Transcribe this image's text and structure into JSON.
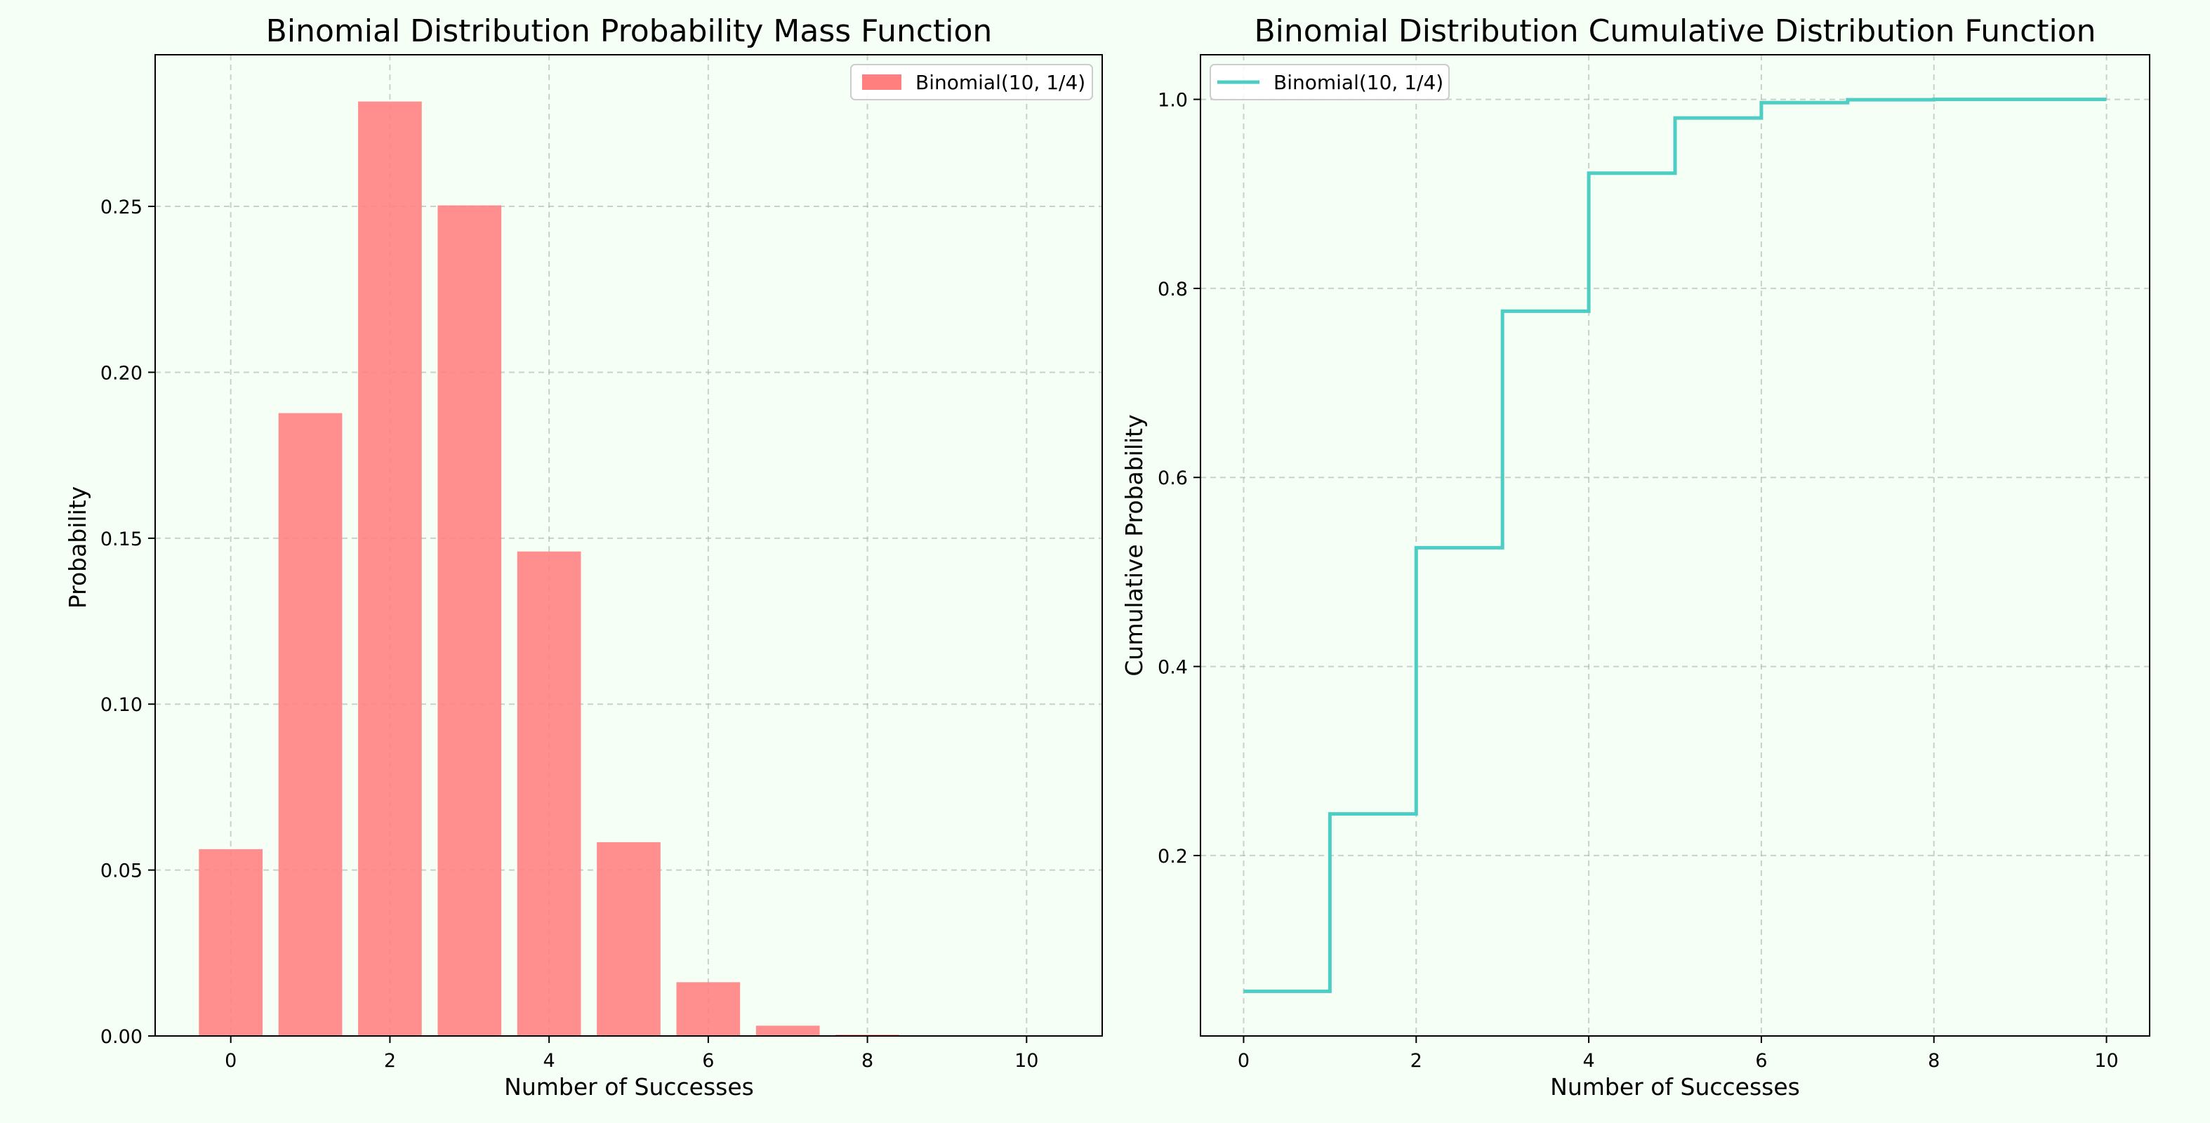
{
  "figure": {
    "background": "#f5fff5"
  },
  "chart_data": [
    {
      "type": "bar",
      "title": "Binomial Distribution Probability Mass Function",
      "xlabel": "Number of Successes",
      "ylabel": "Probability",
      "x": [
        0,
        1,
        2,
        3,
        4,
        5,
        6,
        7,
        8,
        9,
        10
      ],
      "values": [
        0.0563,
        0.1877,
        0.2816,
        0.2503,
        0.146,
        0.0584,
        0.0162,
        0.0031,
        0.0004,
        0.0,
        0.0
      ],
      "xlim": [
        -0.95,
        10.95
      ],
      "ylim": [
        0,
        0.2957
      ],
      "xticks": [
        0,
        2,
        4,
        6,
        8,
        10
      ],
      "yticks": [
        0.0,
        0.05,
        0.1,
        0.15,
        0.2,
        0.25
      ],
      "xtick_labels": [
        "0",
        "2",
        "4",
        "6",
        "8",
        "10"
      ],
      "ytick_labels": [
        "0.00",
        "0.05",
        "0.10",
        "0.15",
        "0.20",
        "0.25"
      ],
      "grid": true,
      "legend": {
        "placement": "top-right",
        "entries": [
          {
            "label": "Binomial(10, 1/4)",
            "color": "#ff7f7f"
          }
        ]
      },
      "color": "#ff7f7f"
    },
    {
      "type": "line",
      "style": "step",
      "title": "Binomial Distribution Cumulative Distribution Function",
      "xlabel": "Number of Successes",
      "ylabel": "Cumulative Probability",
      "x": [
        0,
        1,
        2,
        3,
        4,
        5,
        6,
        7,
        8,
        9,
        10
      ],
      "values": [
        0.0563,
        0.244,
        0.5256,
        0.7759,
        0.9219,
        0.9803,
        0.9965,
        0.9996,
        1.0,
        1.0,
        1.0
      ],
      "xlim": [
        -0.5,
        10.5
      ],
      "ylim": [
        0.0091,
        1.0472
      ],
      "xticks": [
        0,
        2,
        4,
        6,
        8,
        10
      ],
      "yticks": [
        0.2,
        0.4,
        0.6,
        0.8,
        1.0
      ],
      "xtick_labels": [
        "0",
        "2",
        "4",
        "6",
        "8",
        "10"
      ],
      "ytick_labels": [
        "0.2",
        "0.4",
        "0.6",
        "0.8",
        "1.0"
      ],
      "grid": true,
      "legend": {
        "placement": "top-left",
        "entries": [
          {
            "label": "Binomial(10, 1/4)",
            "color": "#4ecdc4"
          }
        ]
      },
      "color": "#4ecdc4"
    }
  ]
}
